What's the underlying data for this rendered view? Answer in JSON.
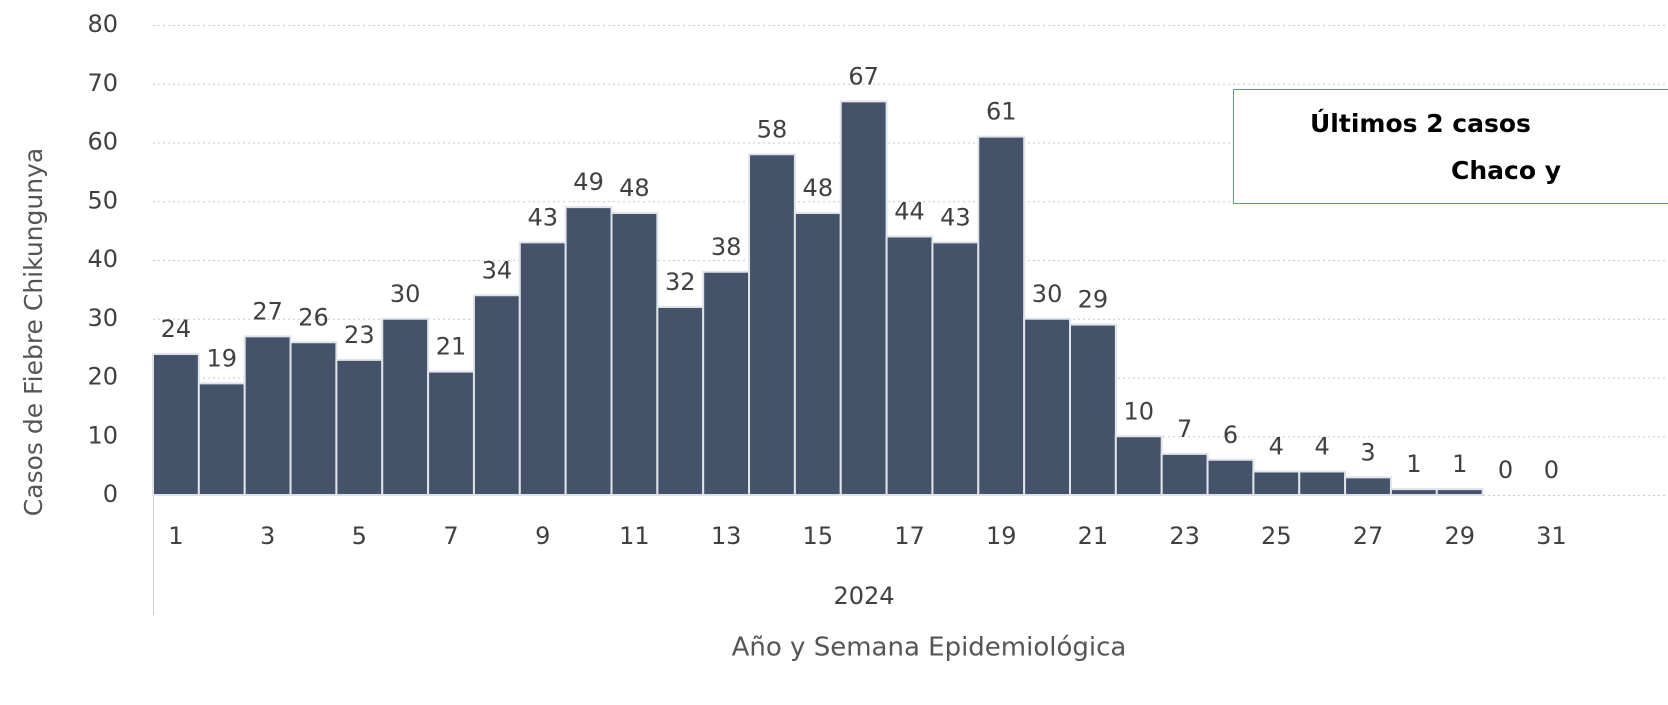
{
  "chart_data": {
    "type": "bar",
    "ylabel": "Casos de Fiebre Chikungunya",
    "xlabel": "Año y Semana Epidemiológica",
    "group_label": "2024",
    "annotation": [
      "Últimos 2 casos",
      "Chaco y"
    ],
    "categories": [
      "1",
      null,
      "3",
      null,
      "5",
      null,
      "7",
      null,
      "9",
      null,
      "11",
      null,
      "13",
      null,
      "15",
      null,
      "17",
      null,
      "19",
      null,
      "21",
      null,
      "23",
      null,
      "25",
      null,
      "27",
      null,
      "29",
      null,
      "31"
    ],
    "values": [
      24,
      19,
      27,
      26,
      23,
      30,
      21,
      34,
      43,
      49,
      48,
      32,
      38,
      58,
      48,
      67,
      44,
      43,
      61,
      30,
      29,
      10,
      7,
      6,
      4,
      4,
      3,
      1,
      1,
      0,
      0
    ],
    "color": "#44536a",
    "ylim": [
      0,
      80
    ],
    "yticks": [
      0,
      10,
      20,
      30,
      40,
      50,
      60,
      70,
      80
    ],
    "grid": true
  }
}
